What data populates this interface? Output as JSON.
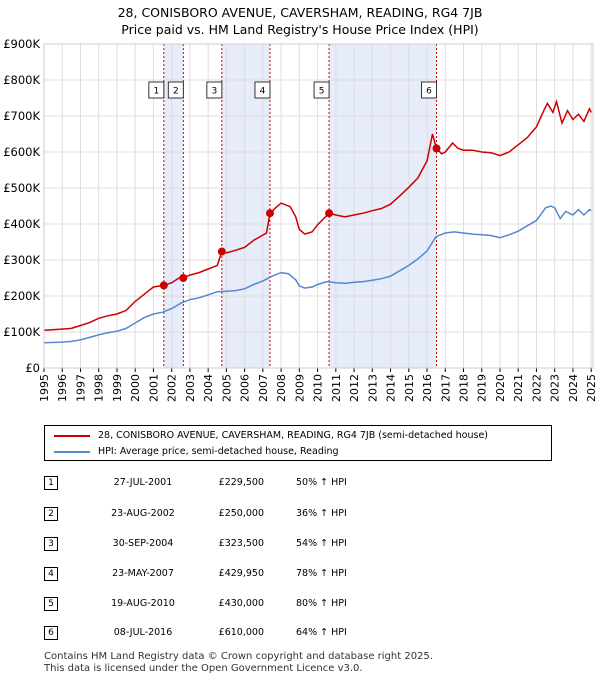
{
  "title": {
    "line1": "28, CONISBORO AVENUE, CAVERSHAM, READING, RG4 7JB",
    "line2": "Price paid vs. HM Land Registry's House Price Index (HPI)"
  },
  "colors": {
    "property": "#cc0000",
    "hpi": "#5588cc",
    "band": "#e6ecfa",
    "grid": "#dddddd"
  },
  "chart_data": {
    "type": "line",
    "title": "Price paid vs. HM Land Registry's House Price Index (HPI)",
    "xlabel": "",
    "ylabel": "",
    "xlim": [
      1995,
      2025.1
    ],
    "ylim": [
      0,
      900000
    ],
    "y_ticks": [
      0,
      100000,
      200000,
      300000,
      400000,
      500000,
      600000,
      700000,
      800000,
      900000
    ],
    "y_tick_labels": [
      "£0",
      "£100K",
      "£200K",
      "£300K",
      "£400K",
      "£500K",
      "£600K",
      "£700K",
      "£800K",
      "£900K"
    ],
    "x_ticks": [
      1995,
      1996,
      1997,
      1998,
      1999,
      2000,
      2001,
      2002,
      2003,
      2004,
      2005,
      2006,
      2007,
      2008,
      2009,
      2010,
      2011,
      2012,
      2013,
      2014,
      2015,
      2016,
      2017,
      2018,
      2019,
      2020,
      2021,
      2022,
      2023,
      2024,
      2025
    ],
    "grid": true,
    "shaded_bands": [
      [
        2001.57,
        2002.64
      ],
      [
        2004.75,
        2007.39
      ],
      [
        2010.63,
        2016.52
      ]
    ],
    "series": [
      {
        "name": "28, CONISBORO AVENUE, CAVERSHAM, READING, RG4 7JB (semi-detached house)",
        "points": [
          [
            1995.0,
            105000
          ],
          [
            1996.0,
            108000
          ],
          [
            1996.5,
            110000
          ],
          [
            1997.0,
            118000
          ],
          [
            1997.5,
            126000
          ],
          [
            1998.0,
            138000
          ],
          [
            1998.5,
            145000
          ],
          [
            1999.0,
            150000
          ],
          [
            1999.5,
            160000
          ],
          [
            2000.0,
            185000
          ],
          [
            2000.5,
            205000
          ],
          [
            2001.0,
            225000
          ],
          [
            2001.57,
            229500
          ],
          [
            2002.0,
            237000
          ],
          [
            2002.4,
            250000
          ],
          [
            2002.64,
            250000
          ],
          [
            2003.0,
            258000
          ],
          [
            2003.5,
            265000
          ],
          [
            2004.0,
            275000
          ],
          [
            2004.5,
            285000
          ],
          [
            2004.75,
            323500
          ],
          [
            2005.0,
            320000
          ],
          [
            2005.5,
            327000
          ],
          [
            2006.0,
            335000
          ],
          [
            2006.5,
            355000
          ],
          [
            2007.2,
            375000
          ],
          [
            2007.39,
            429950
          ],
          [
            2007.7,
            445000
          ],
          [
            2008.0,
            458000
          ],
          [
            2008.5,
            448000
          ],
          [
            2008.8,
            420000
          ],
          [
            2009.0,
            385000
          ],
          [
            2009.3,
            372000
          ],
          [
            2009.7,
            378000
          ],
          [
            2010.0,
            398000
          ],
          [
            2010.63,
            430000
          ],
          [
            2011.0,
            425000
          ],
          [
            2011.5,
            420000
          ],
          [
            2012.0,
            425000
          ],
          [
            2012.5,
            430000
          ],
          [
            2013.0,
            437000
          ],
          [
            2013.5,
            443000
          ],
          [
            2014.0,
            455000
          ],
          [
            2014.5,
            478000
          ],
          [
            2015.0,
            502000
          ],
          [
            2015.5,
            528000
          ],
          [
            2016.0,
            575000
          ],
          [
            2016.3,
            650000
          ],
          [
            2016.52,
            610000
          ],
          [
            2016.8,
            595000
          ],
          [
            2017.0,
            600000
          ],
          [
            2017.4,
            625000
          ],
          [
            2017.7,
            610000
          ],
          [
            2018.0,
            605000
          ],
          [
            2018.5,
            605000
          ],
          [
            2019.0,
            600000
          ],
          [
            2019.5,
            598000
          ],
          [
            2020.0,
            590000
          ],
          [
            2020.5,
            600000
          ],
          [
            2021.0,
            620000
          ],
          [
            2021.5,
            640000
          ],
          [
            2022.0,
            670000
          ],
          [
            2022.4,
            715000
          ],
          [
            2022.6,
            735000
          ],
          [
            2022.9,
            710000
          ],
          [
            2023.1,
            740000
          ],
          [
            2023.4,
            680000
          ],
          [
            2023.7,
            715000
          ],
          [
            2024.0,
            690000
          ],
          [
            2024.3,
            705000
          ],
          [
            2024.6,
            685000
          ],
          [
            2024.9,
            720000
          ],
          [
            2025.0,
            710000
          ]
        ]
      },
      {
        "name": "HPI: Average price, semi-detached house, Reading",
        "points": [
          [
            1995.0,
            70000
          ],
          [
            1996.0,
            72000
          ],
          [
            1996.5,
            74000
          ],
          [
            1997.0,
            78000
          ],
          [
            1997.5,
            85000
          ],
          [
            1998.0,
            92000
          ],
          [
            1998.5,
            98000
          ],
          [
            1999.0,
            102000
          ],
          [
            1999.5,
            110000
          ],
          [
            2000.0,
            125000
          ],
          [
            2000.5,
            140000
          ],
          [
            2001.0,
            150000
          ],
          [
            2001.5,
            155000
          ],
          [
            2002.0,
            165000
          ],
          [
            2002.5,
            180000
          ],
          [
            2003.0,
            190000
          ],
          [
            2003.5,
            195000
          ],
          [
            2004.0,
            203000
          ],
          [
            2004.5,
            212000
          ],
          [
            2005.0,
            213000
          ],
          [
            2005.5,
            215000
          ],
          [
            2006.0,
            220000
          ],
          [
            2006.5,
            232000
          ],
          [
            2007.0,
            242000
          ],
          [
            2007.5,
            255000
          ],
          [
            2008.0,
            265000
          ],
          [
            2008.4,
            262000
          ],
          [
            2008.8,
            245000
          ],
          [
            2009.0,
            228000
          ],
          [
            2009.3,
            222000
          ],
          [
            2009.7,
            225000
          ],
          [
            2010.0,
            232000
          ],
          [
            2010.5,
            240000
          ],
          [
            2011.0,
            237000
          ],
          [
            2011.5,
            235000
          ],
          [
            2012.0,
            238000
          ],
          [
            2012.5,
            240000
          ],
          [
            2013.0,
            244000
          ],
          [
            2013.5,
            248000
          ],
          [
            2014.0,
            255000
          ],
          [
            2014.5,
            270000
          ],
          [
            2015.0,
            285000
          ],
          [
            2015.5,
            303000
          ],
          [
            2016.0,
            325000
          ],
          [
            2016.5,
            365000
          ],
          [
            2017.0,
            375000
          ],
          [
            2017.5,
            378000
          ],
          [
            2018.0,
            375000
          ],
          [
            2018.5,
            372000
          ],
          [
            2019.0,
            370000
          ],
          [
            2019.5,
            368000
          ],
          [
            2020.0,
            362000
          ],
          [
            2020.5,
            370000
          ],
          [
            2021.0,
            380000
          ],
          [
            2021.5,
            395000
          ],
          [
            2022.0,
            410000
          ],
          [
            2022.5,
            445000
          ],
          [
            2022.8,
            450000
          ],
          [
            2023.0,
            445000
          ],
          [
            2023.3,
            415000
          ],
          [
            2023.6,
            435000
          ],
          [
            2024.0,
            425000
          ],
          [
            2024.3,
            440000
          ],
          [
            2024.6,
            425000
          ],
          [
            2024.9,
            440000
          ],
          [
            2025.0,
            437000
          ]
        ]
      }
    ],
    "sales": [
      {
        "marker": "1",
        "x": 2001.57,
        "price": 229500
      },
      {
        "marker": "2",
        "x": 2002.64,
        "price": 250000
      },
      {
        "marker": "3",
        "x": 2004.75,
        "price": 323500
      },
      {
        "marker": "4",
        "x": 2007.39,
        "price": 429950
      },
      {
        "marker": "5",
        "x": 2010.63,
        "price": 430000
      },
      {
        "marker": "6",
        "x": 2016.52,
        "price": 610000
      }
    ]
  },
  "legend": {
    "property_label": "28, CONISBORO AVENUE, CAVERSHAM, READING, RG4 7JB (semi-detached house)",
    "hpi_label": "HPI: Average price, semi-detached house, Reading"
  },
  "sales_table": [
    {
      "num": "1",
      "date": "27-JUL-2001",
      "price": "£229,500",
      "hpi": "50% ↑ HPI"
    },
    {
      "num": "2",
      "date": "23-AUG-2002",
      "price": "£250,000",
      "hpi": "36% ↑ HPI"
    },
    {
      "num": "3",
      "date": "30-SEP-2004",
      "price": "£323,500",
      "hpi": "54% ↑ HPI"
    },
    {
      "num": "4",
      "date": "23-MAY-2007",
      "price": "£429,950",
      "hpi": "78% ↑ HPI"
    },
    {
      "num": "5",
      "date": "19-AUG-2010",
      "price": "£430,000",
      "hpi": "80% ↑ HPI"
    },
    {
      "num": "6",
      "date": "08-JUL-2016",
      "price": "£610,000",
      "hpi": "64% ↑ HPI"
    }
  ],
  "footer": {
    "line1": "Contains HM Land Registry data © Crown copyright and database right 2025.",
    "line2": "This data is licensed under the Open Government Licence v3.0."
  }
}
